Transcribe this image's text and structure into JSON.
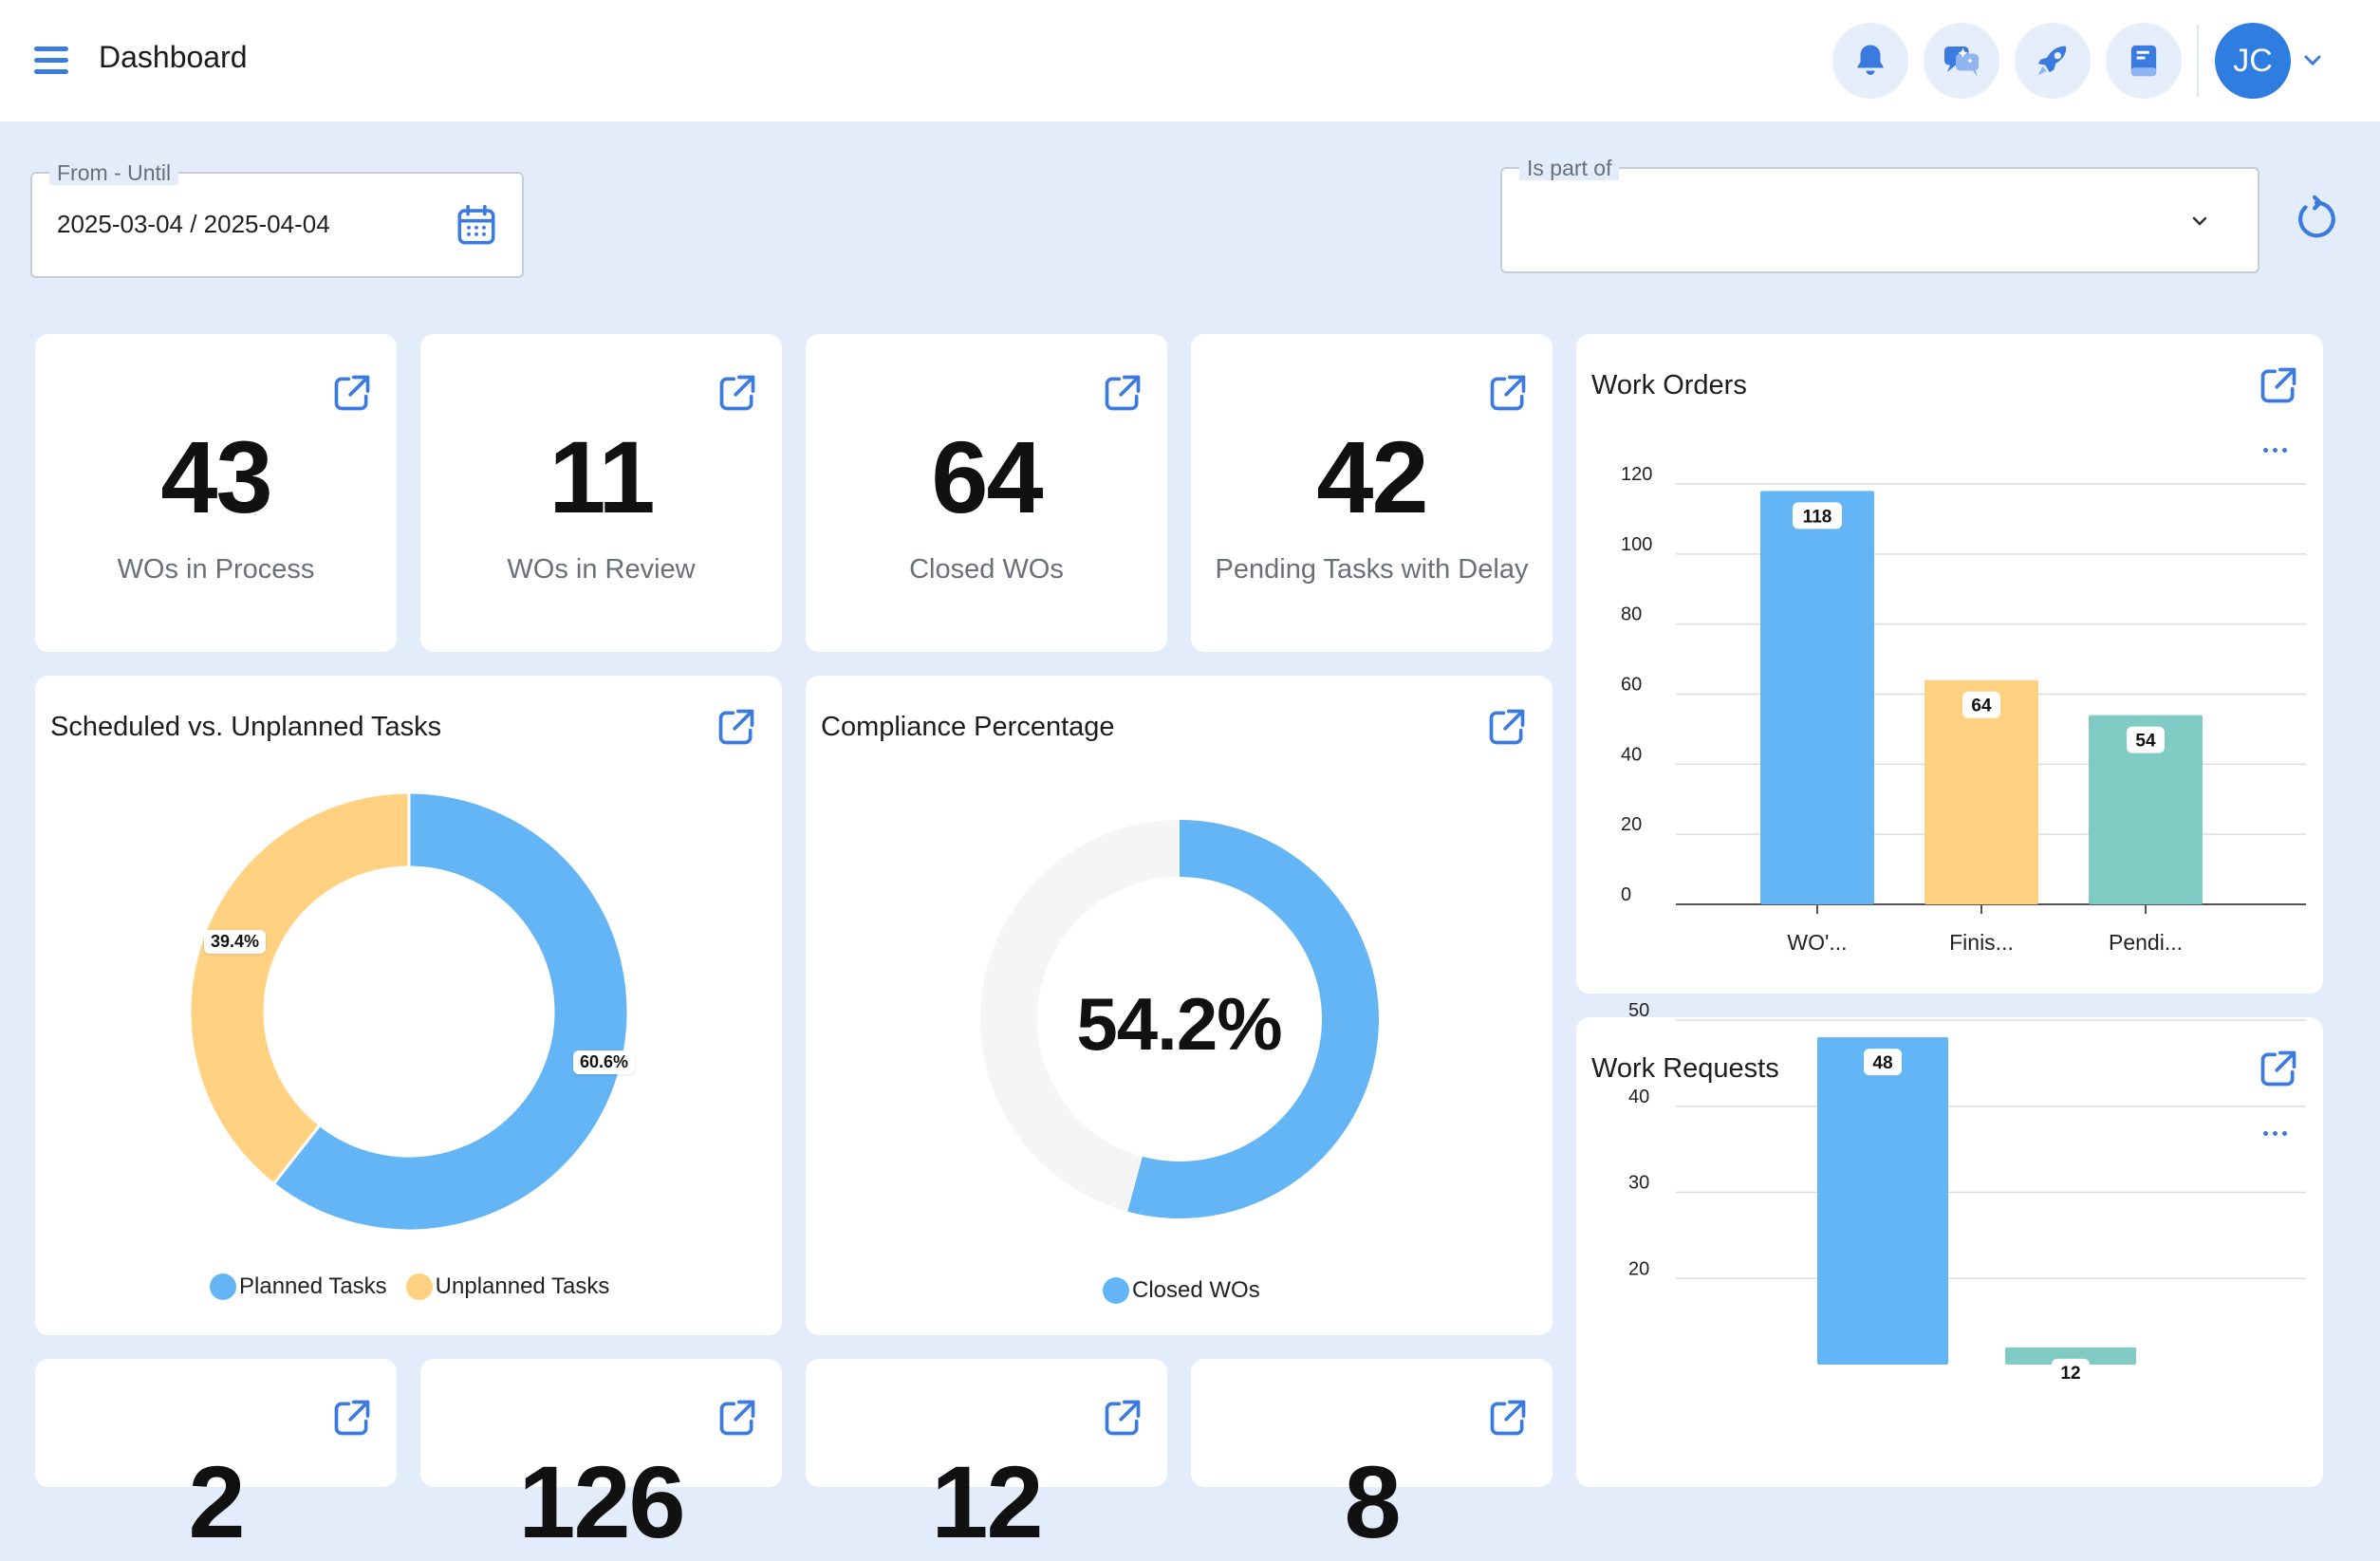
{
  "header": {
    "title": "Dashboard",
    "avatar_initials": "JC",
    "icons": [
      "bell-icon",
      "chat-sparkle-icon",
      "rocket-icon",
      "book-icon"
    ]
  },
  "filters": {
    "date_label": "From - Until",
    "date_value": "2025-03-04 / 2025-04-04",
    "part_of_label": "Is part of",
    "part_of_value": ""
  },
  "kpis": [
    {
      "value": "43",
      "label": "WOs in Process"
    },
    {
      "value": "11",
      "label": "WOs in Review"
    },
    {
      "value": "64",
      "label": "Closed WOs"
    },
    {
      "value": "42",
      "label": "Pending Tasks with Delay"
    }
  ],
  "kpis_row2": [
    {
      "value": "2"
    },
    {
      "value": "126"
    },
    {
      "value": "12"
    },
    {
      "value": "8"
    }
  ],
  "colors": {
    "blue": "#64b5f6",
    "yellow": "#ffd180",
    "teal": "#80cbc4",
    "track": "#f5f5f5",
    "accent": "#3b7be0"
  },
  "scheduled_card": {
    "title": "Scheduled vs. Unplanned Tasks",
    "legend": [
      "Planned Tasks",
      "Unplanned Tasks"
    ],
    "planned_pct_label": "60.6%",
    "unplanned_pct_label": "39.4%"
  },
  "compliance_card": {
    "title": "Compliance Percentage",
    "center_value": "54.2%",
    "legend": "Closed WOs"
  },
  "work_orders_card": {
    "title": "Work Orders"
  },
  "work_requests_card": {
    "title": "Work Requests"
  },
  "chart_data": [
    {
      "type": "pie",
      "title": "Scheduled vs. Unplanned Tasks",
      "labels": [
        "Planned Tasks",
        "Unplanned Tasks"
      ],
      "values": [
        60.6,
        39.4
      ],
      "colors": [
        "#64b5f6",
        "#ffd180"
      ]
    },
    {
      "type": "pie",
      "title": "Compliance Percentage",
      "labels": [
        "Closed WOs"
      ],
      "values": [
        54.2
      ],
      "colors": [
        "#64b5f6"
      ]
    },
    {
      "type": "bar",
      "title": "Work Orders",
      "categories": [
        "WO'...",
        "Finis...",
        "Pendi..."
      ],
      "values": [
        118,
        64,
        54
      ],
      "colors": [
        "#64b5f6",
        "#ffd180",
        "#80cbc4"
      ],
      "ylim": [
        0,
        120
      ],
      "yticks": [
        0,
        20,
        40,
        60,
        80,
        100,
        120
      ],
      "grid": true
    },
    {
      "type": "bar",
      "title": "Work Requests",
      "categories": [
        "",
        ""
      ],
      "values": [
        48,
        12
      ],
      "colors": [
        "#64b5f6",
        "#80cbc4"
      ],
      "ylim": [
        10,
        50
      ],
      "yticks": [
        20,
        30,
        40,
        50
      ],
      "grid": true
    }
  ]
}
